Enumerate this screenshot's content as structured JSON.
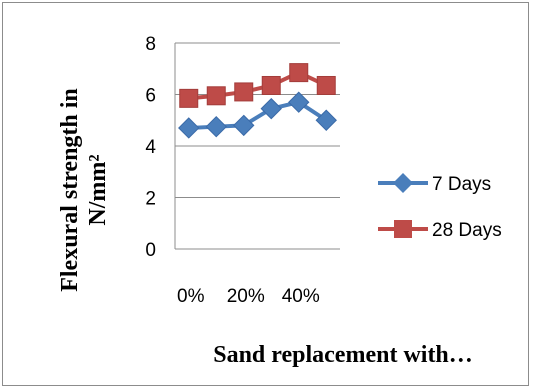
{
  "chart_data": {
    "type": "line",
    "xlabel": "Sand replacement with…",
    "ylabel_line1": "Flexural strength in",
    "ylabel_line2": "N/mm²",
    "ylim": [
      0,
      8
    ],
    "yticks": [
      "0",
      "2",
      "4",
      "6",
      "8"
    ],
    "xtick_labels": [
      "0%",
      "20%",
      "40%"
    ],
    "x": [
      "0%",
      "10%",
      "20%",
      "30%",
      "40%",
      "50%"
    ],
    "grid": true,
    "legend_position": "right",
    "series": [
      {
        "name": "7 Days",
        "values": [
          4.7,
          4.75,
          4.8,
          5.45,
          5.7,
          5.0
        ],
        "color": "#4a7ebb",
        "marker": "diamond"
      },
      {
        "name": "28 Days",
        "values": [
          5.85,
          5.95,
          6.1,
          6.35,
          6.85,
          6.35
        ],
        "color": "#be4b48",
        "marker": "square"
      }
    ]
  }
}
